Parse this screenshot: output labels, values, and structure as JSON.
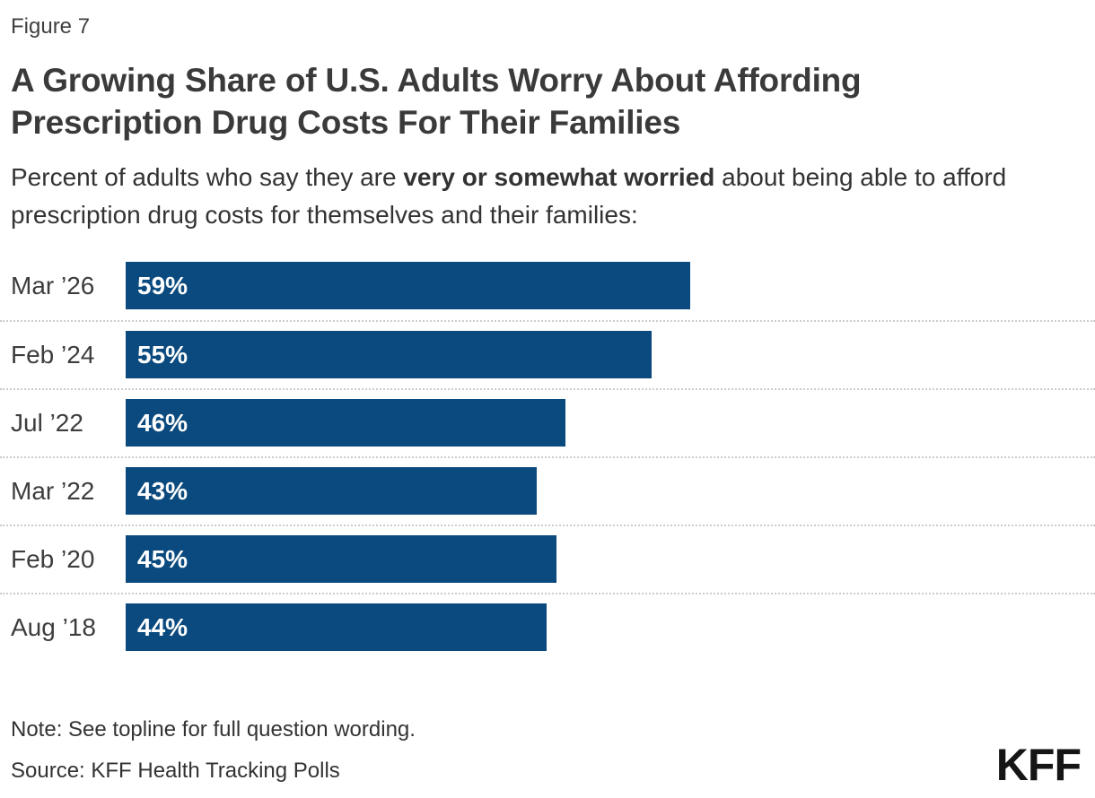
{
  "figure_label": "Figure 7",
  "title": "A Growing Share of U.S. Adults Worry About Affording Prescription Drug Costs For Their Families",
  "subtitle": {
    "prefix": "Percent of adults who say they are ",
    "bold": "very or somewhat worried",
    "suffix": " about being able to afford prescription drug costs for themselves and their families:"
  },
  "chart_data": {
    "type": "bar",
    "orientation": "horizontal",
    "title": "A Growing Share of U.S. Adults Worry About Affording Prescription Drug Costs For Their Families",
    "categories": [
      "Mar ’26",
      "Feb ’24",
      "Jul ’22",
      "Mar ’22",
      "Feb ’20",
      "Aug ’18"
    ],
    "values": [
      59,
      55,
      46,
      43,
      45,
      44
    ],
    "value_labels": [
      "59%",
      "55%",
      "46%",
      "43%",
      "45%",
      "44%"
    ],
    "xlabel": "",
    "ylabel": "",
    "xlim": [
      0,
      100
    ],
    "grid": false,
    "legend": false,
    "bar_color": "#0b4a7e",
    "value_label_color": "#ffffff",
    "separator_color": "#cccccc"
  },
  "note": "Note: See topline for full question wording.",
  "source": "Source: KFF Health Tracking Polls",
  "logo_text": "KFF"
}
